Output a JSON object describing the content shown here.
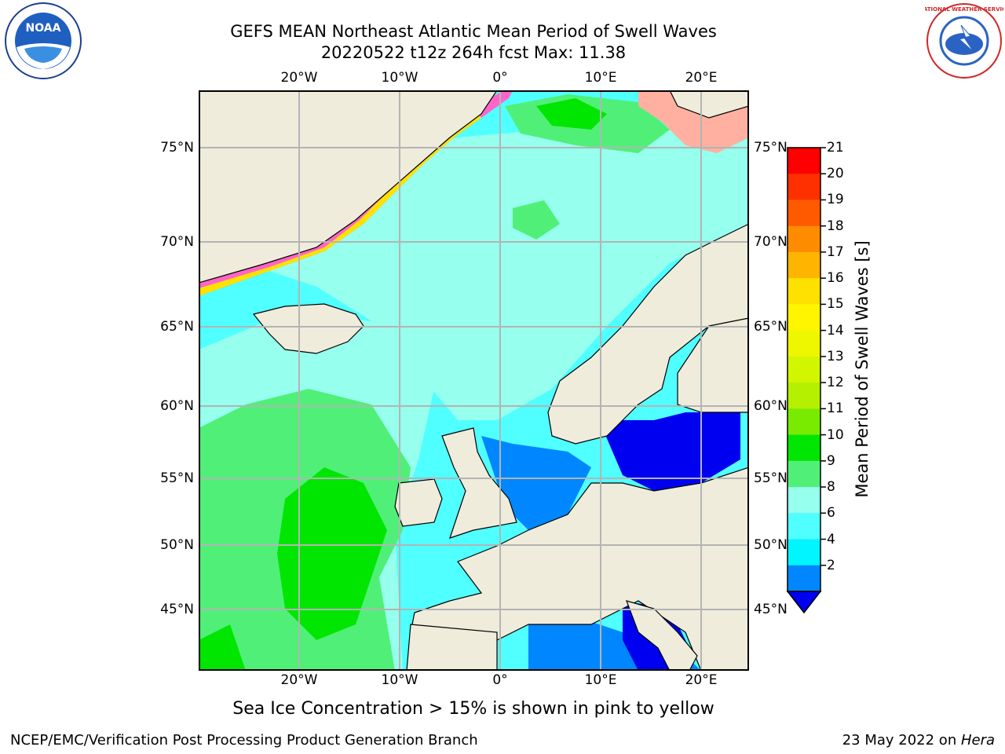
{
  "title": {
    "line1": "GEFS MEAN Northeast Atlantic Mean Period of Swell Waves",
    "line2": "20220522 t12z 264h fcst   Max: 11.38"
  },
  "subtitle": "Sea Ice Concentration > 15% is shown in pink to yellow",
  "footer": {
    "left": "NCEP/EMC/Verification Post Processing Product Generation Branch",
    "right_date": "23 May 2022 on ",
    "right_host": "Hera"
  },
  "logos": {
    "left": "noaa-logo",
    "right": "nws-logo",
    "left_text": "NOAA",
    "right_text": "NATIONAL WEATHER SERVICE"
  },
  "map": {
    "lon_labels_top": [
      "20°W",
      "10°W",
      "0°",
      "10°E",
      "20°E"
    ],
    "lon_labels_bottom": [
      "20°W",
      "10°W",
      "0°",
      "10°E",
      "20°E"
    ],
    "lat_labels_left": [
      "75°N",
      "70°N",
      "65°N",
      "60°N",
      "55°N",
      "50°N",
      "45°N"
    ],
    "lat_labels_right": [
      "75°N",
      "70°N",
      "65°N",
      "60°N",
      "55°N",
      "50°N",
      "45°N"
    ],
    "colors": {
      "land": "#efecdc",
      "grid": "#b4b4b4",
      "coast": "#000000"
    }
  },
  "colorbar": {
    "title": "Mean Period of Swell Waves [s]",
    "ticks": [
      "21",
      "20",
      "19",
      "18",
      "17",
      "16",
      "15",
      "14",
      "13",
      "12",
      "11",
      "10",
      "9",
      "8",
      "6",
      "4",
      "2"
    ],
    "colors": [
      "#ff0000",
      "#ff3000",
      "#ff5a00",
      "#ff8c00",
      "#ffb400",
      "#ffe100",
      "#fff500",
      "#eef700",
      "#d2f500",
      "#b4f000",
      "#78eb00",
      "#00e600",
      "#50f078",
      "#96ffee",
      "#50ffff",
      "#00f5ff",
      "#0087ff",
      "#0000f0"
    ]
  }
}
